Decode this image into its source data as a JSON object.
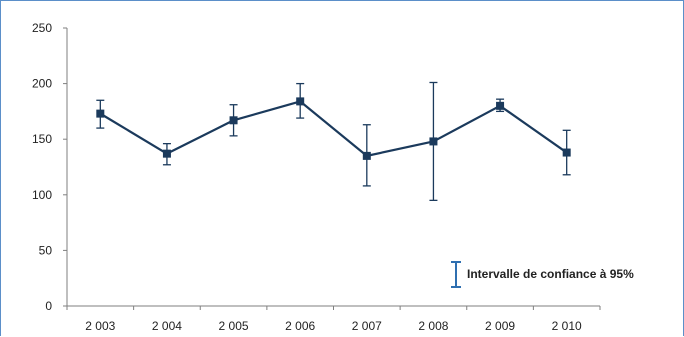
{
  "chart_data": {
    "type": "line",
    "categories": [
      "2 003",
      "2 004",
      "2 005",
      "2 006",
      "2 007",
      "2 008",
      "2 009",
      "2 010"
    ],
    "series": [
      {
        "values": [
          173,
          137,
          167,
          184,
          135,
          148,
          180,
          138
        ],
        "error_low": [
          160,
          127,
          153,
          169,
          108,
          95,
          175,
          118
        ],
        "error_high": [
          185,
          146,
          181,
          200,
          163,
          201,
          186,
          158
        ]
      }
    ],
    "ylim": [
      0,
      250
    ],
    "yticks": [
      0,
      50,
      100,
      150,
      200,
      250
    ],
    "grid": false,
    "legend": {
      "label": "Intervalle de confiance à 95%",
      "position": "bottom-right"
    },
    "colors": {
      "line": "#1b3a5c",
      "errorbar": "#1b3a5c",
      "legend_icon": "#2f6fb0",
      "frame": "#5b8fc9",
      "axis": "#7f7f7f"
    }
  }
}
